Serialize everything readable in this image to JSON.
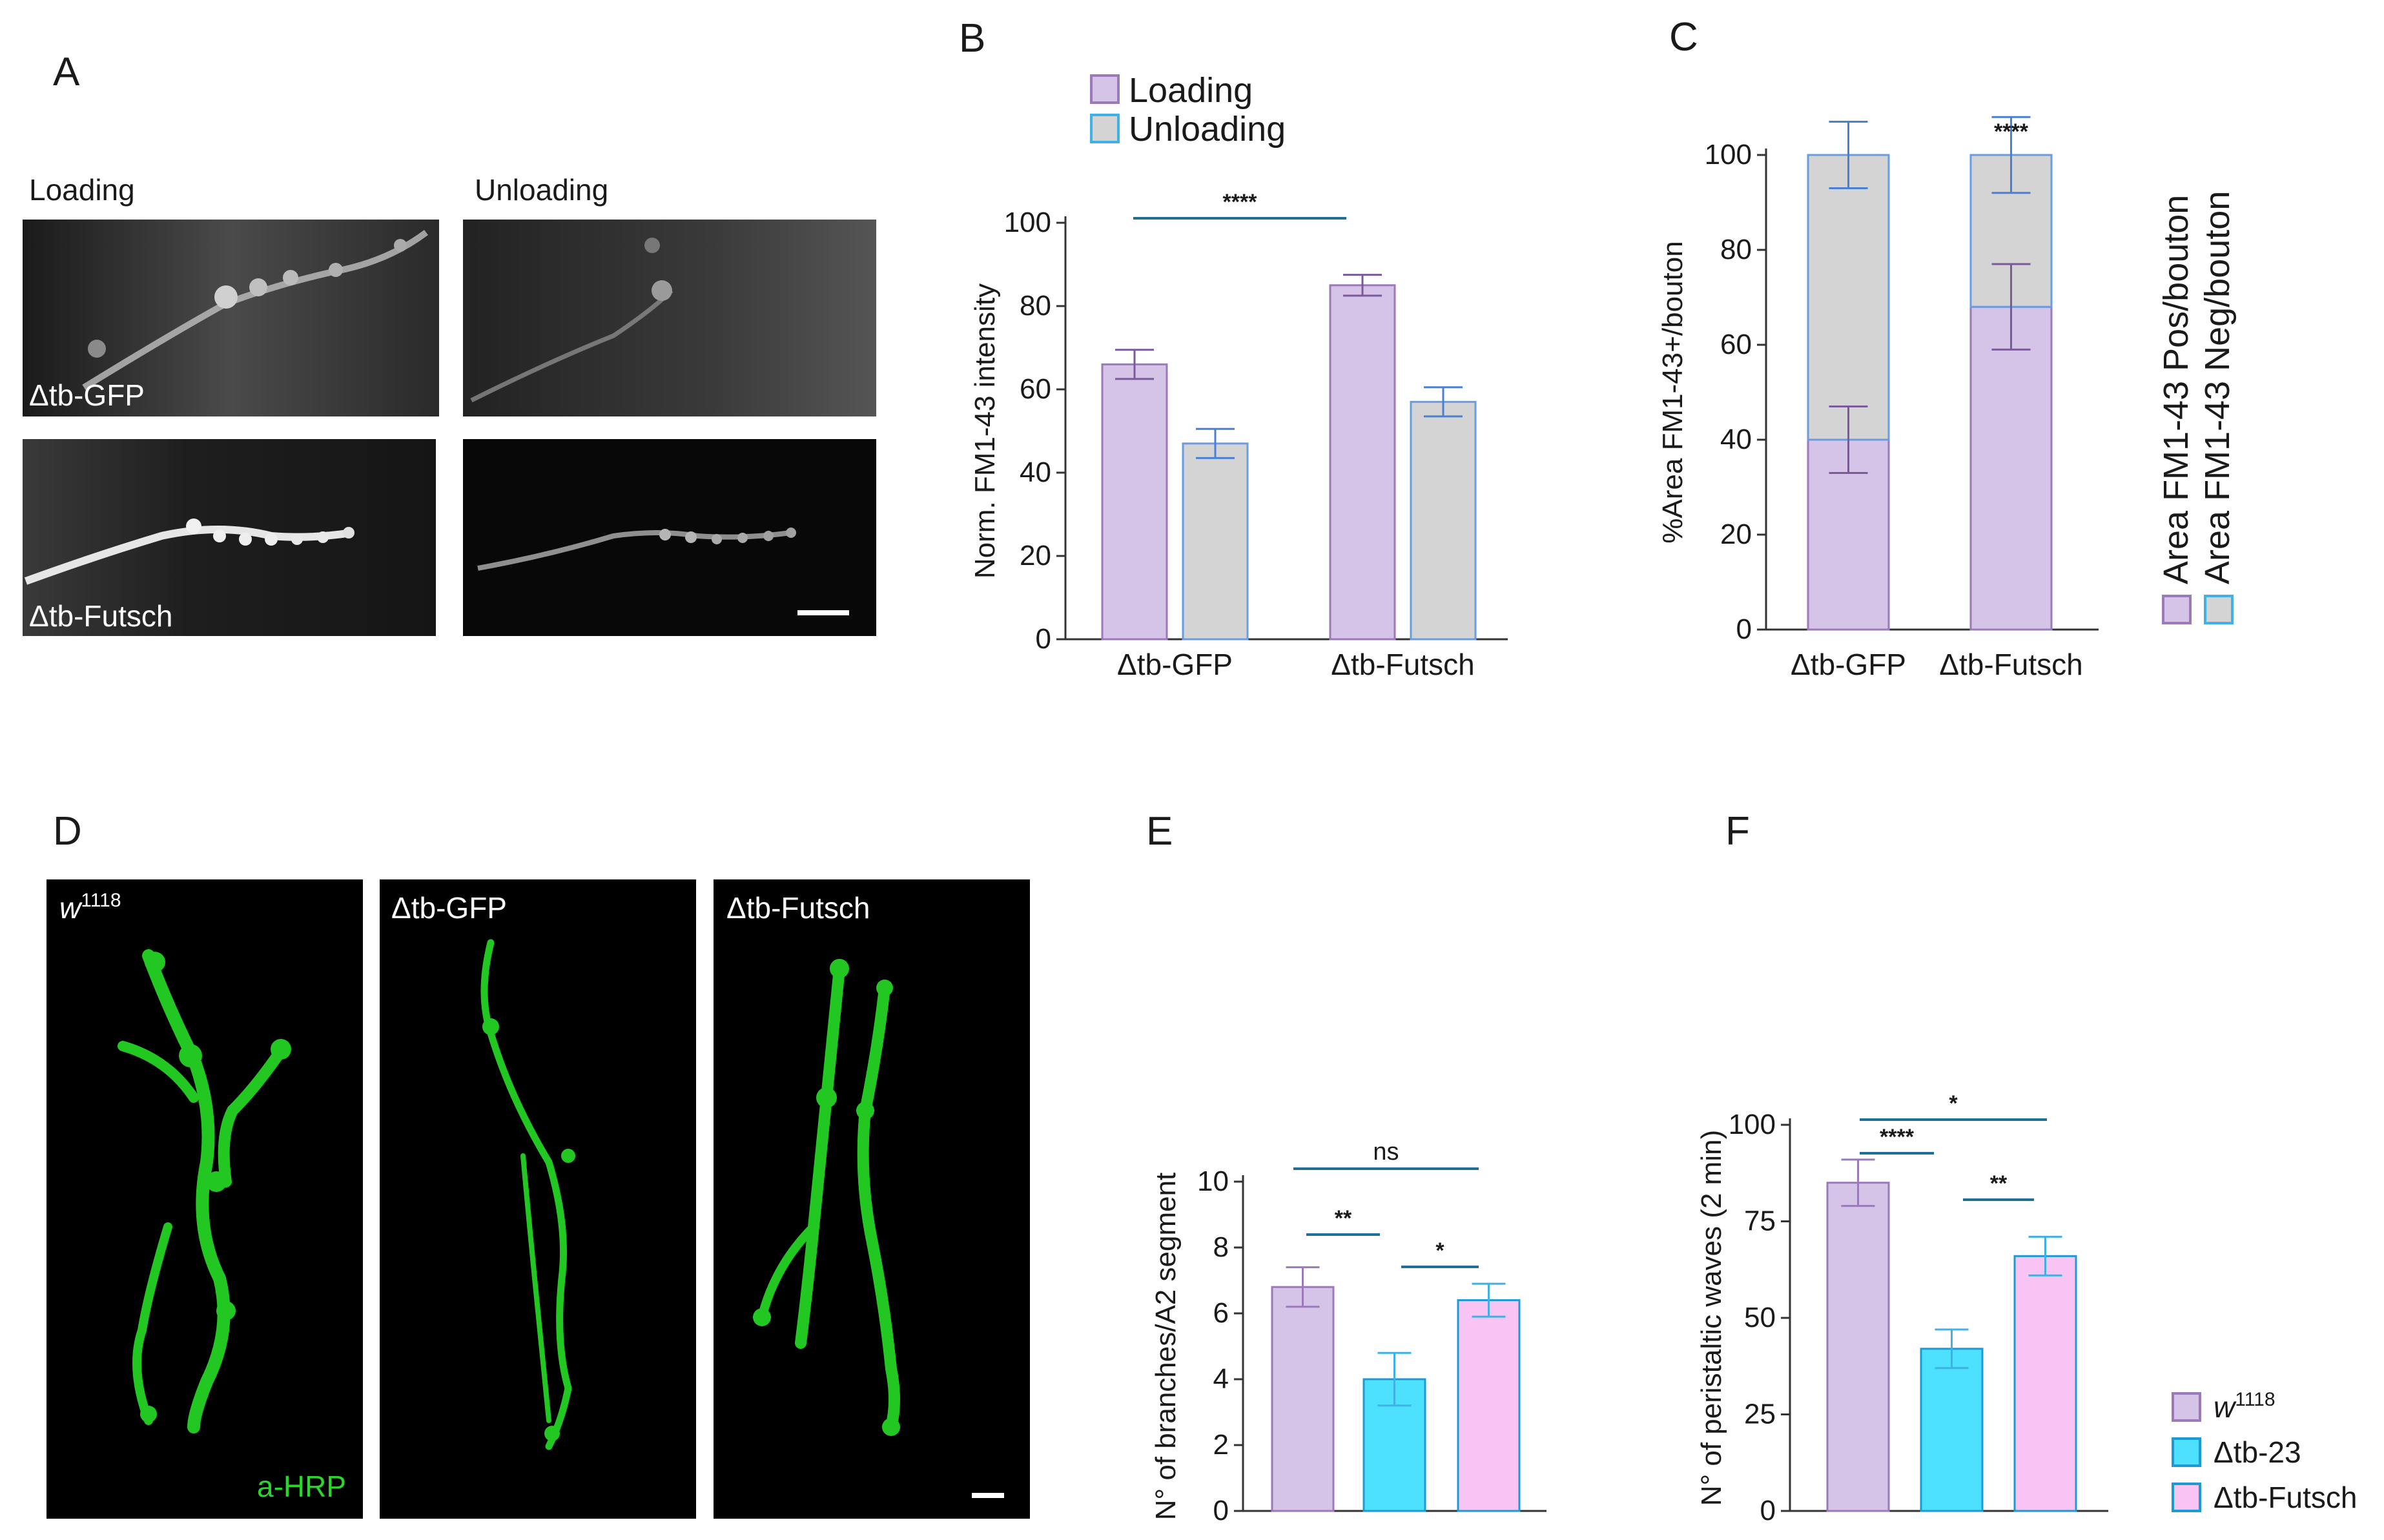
{
  "panels": {
    "A": {
      "letter": "A",
      "col_loading": "Loading",
      "col_unloading": "Unloading",
      "row1": "Δtb-GFP",
      "row2": "Δtb-Futsch"
    },
    "D": {
      "letter": "D",
      "img1_label_base": "w",
      "img1_label_sup": "1118",
      "img2_label": "Δtb-GFP",
      "img3_label": "Δtb-Futsch",
      "stain": "a-HRP"
    }
  },
  "colors": {
    "loading": "#d6c3e8",
    "loading_edge": "#9a7ab8",
    "unloading": "#d4d4d4",
    "unloading_edge": "#6b9be0",
    "w1118": "#d6c3e8",
    "dtb23": "#4de1ff",
    "dtbfutsch": "#f7c4f3",
    "sig_line": "#1f6f9a",
    "micro_green": "#22c722"
  },
  "chart_data": [
    {
      "id": "B",
      "letter": "B",
      "type": "bar",
      "categories": [
        "Δtb-GFP",
        "Δtb-Futsch"
      ],
      "series": [
        {
          "name": "Loading",
          "values": [
            66,
            85
          ],
          "errors": [
            3.5,
            2.5
          ]
        },
        {
          "name": "Unloading",
          "values": [
            47,
            57
          ],
          "errors": [
            3.5,
            3.5
          ]
        }
      ],
      "ylabel": "Norm. FM1-43 intensity",
      "ylim": [
        0,
        100
      ],
      "yticks": [
        "0",
        "20",
        "40",
        "60",
        "80",
        "100"
      ],
      "legend": [
        "Loading",
        "Unloading"
      ],
      "legend_position": "top",
      "significance": [
        {
          "label": "****"
        }
      ]
    },
    {
      "id": "C",
      "letter": "C",
      "type": "bar",
      "stacked": true,
      "categories": [
        "Δtb-GFP",
        "Δtb-Futsch"
      ],
      "series": [
        {
          "name": "Area FM1-43 Pos/bouton",
          "values": [
            40,
            68
          ],
          "errors": [
            7,
            9
          ]
        },
        {
          "name": "Area FM1-43 Neg/bouton",
          "values": [
            60,
            32
          ],
          "errors": [
            7,
            8
          ]
        }
      ],
      "ylabel": "%Area FM1-43+/bouton",
      "ylim": [
        0,
        100
      ],
      "yticks": [
        "0",
        "20",
        "40",
        "60",
        "80",
        "100"
      ],
      "legend_position": "right",
      "significance": [
        {
          "label": "****"
        }
      ]
    },
    {
      "id": "E",
      "letter": "E",
      "type": "bar",
      "categories": [
        "",
        "",
        ""
      ],
      "values": [
        6.8,
        4.0,
        6.4
      ],
      "errors": [
        0.6,
        0.8,
        0.5
      ],
      "ylabel": "N° of branches/A2 segment",
      "ylim": [
        0,
        10
      ],
      "yticks": [
        "0",
        "2",
        "4",
        "6",
        "8",
        "10"
      ],
      "significance": [
        {
          "label": "ns"
        },
        {
          "label": "**"
        },
        {
          "label": "*"
        }
      ]
    },
    {
      "id": "F",
      "letter": "F",
      "type": "bar",
      "categories": [
        "",
        "",
        ""
      ],
      "values": [
        85,
        42,
        66
      ],
      "errors": [
        6,
        5,
        5
      ],
      "ylabel": "N° of peristaltic waves (2 min)",
      "ylim": [
        0,
        100
      ],
      "yticks": [
        "0",
        "25",
        "50",
        "75",
        "100"
      ],
      "legend": [
        {
          "base": "w",
          "sup": "1118"
        },
        {
          "base": "Δtb-23",
          "sup": ""
        },
        {
          "base": "Δtb-Futsch",
          "sup": ""
        }
      ],
      "legend_position": "right",
      "significance": [
        {
          "label": "****"
        },
        {
          "label": "*"
        },
        {
          "label": "**"
        }
      ]
    }
  ]
}
